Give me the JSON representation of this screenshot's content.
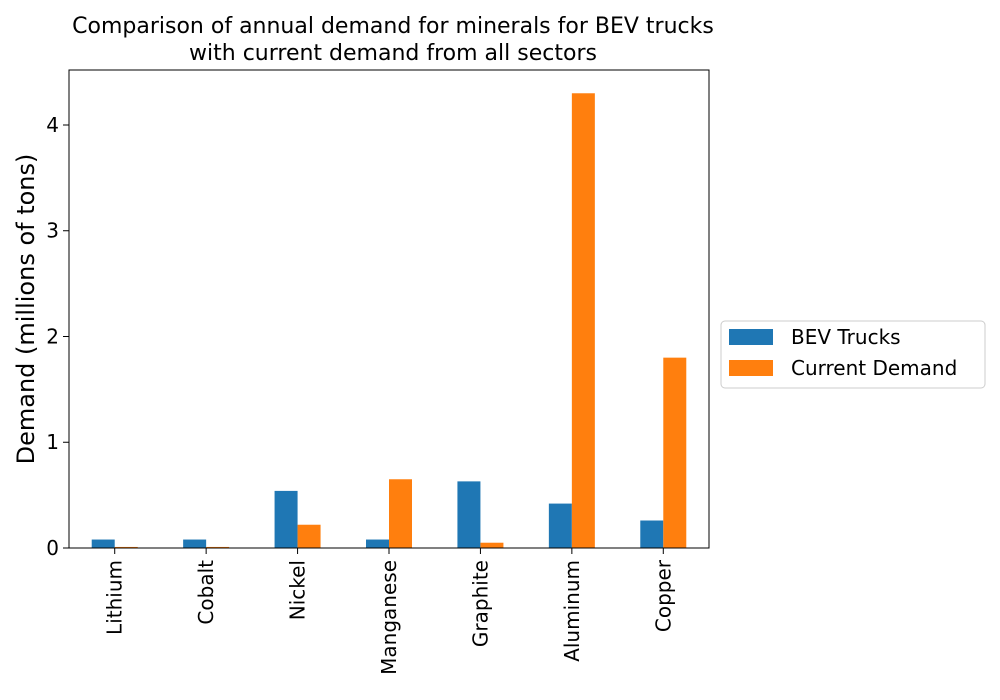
{
  "chart_data": {
    "type": "bar",
    "title": "Comparison of annual demand for minerals for BEV trucks\nwith current demand from all sectors",
    "xlabel": "",
    "ylabel": "Demand (millions of tons)",
    "categories": [
      "Lithium",
      "Cobalt",
      "Nickel",
      "Manganese",
      "Graphite",
      "Aluminum",
      "Copper"
    ],
    "series": [
      {
        "name": "BEV Trucks",
        "color": "#1f77b4",
        "values": [
          0.08,
          0.08,
          0.54,
          0.08,
          0.63,
          0.42,
          0.26
        ]
      },
      {
        "name": "Current Demand",
        "color": "#ff7f0e",
        "values": [
          0.01,
          0.01,
          0.22,
          0.65,
          0.05,
          4.3,
          1.8
        ]
      }
    ],
    "ylim": [
      0,
      4.52
    ],
    "yticks": [
      0,
      1,
      2,
      3,
      4
    ],
    "grid": false,
    "legend_position": "right"
  }
}
